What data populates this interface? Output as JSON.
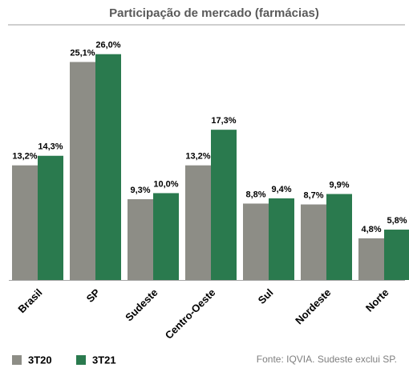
{
  "chart_data": {
    "type": "bar",
    "title": "Participação de mercado (farmácias)",
    "categories": [
      "Brasil",
      "SP",
      "Sudeste",
      "Centro-Oeste",
      "Sul",
      "Nordeste",
      "Norte"
    ],
    "series": [
      {
        "name": "3T20",
        "color": "#8d8d86",
        "values": [
          13.2,
          25.1,
          9.3,
          13.2,
          8.8,
          8.7,
          4.8
        ],
        "value_labels": [
          "13,2%",
          "25,1%",
          "9,3%",
          "13,2%",
          "8,8%",
          "8,7%",
          "4,8%"
        ]
      },
      {
        "name": "3T21",
        "color": "#2a7a4e",
        "values": [
          14.3,
          26.0,
          10.0,
          17.3,
          9.4,
          9.9,
          5.8
        ],
        "value_labels": [
          "14,3%",
          "26,0%",
          "10,0%",
          "17,3%",
          "9,4%",
          "9,9%",
          "5,8%"
        ]
      }
    ],
    "ylim": [
      0,
      28
    ],
    "legend": "bottom-left",
    "note": "Fonte: IQVIA. Sudeste exclui SP."
  }
}
